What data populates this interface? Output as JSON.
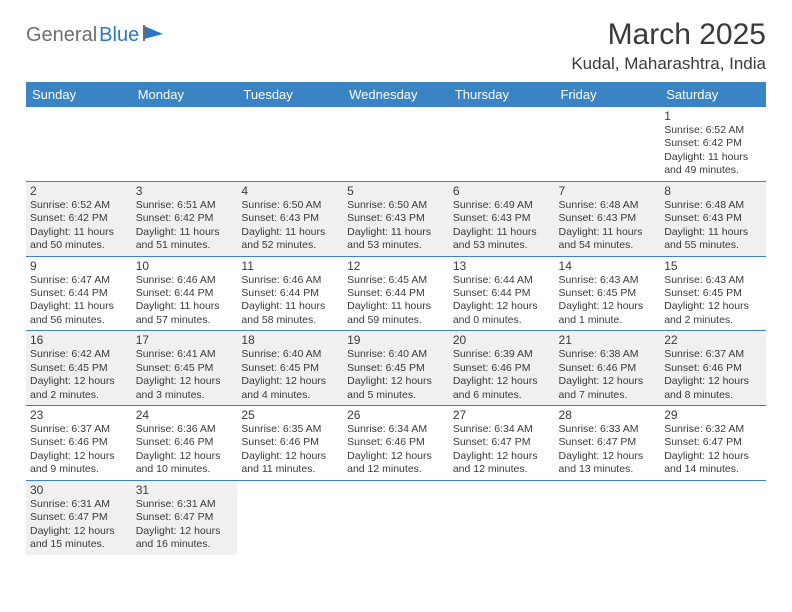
{
  "logo": {
    "textGray": "General",
    "textBlue": "Blue"
  },
  "title": "March 2025",
  "location": "Kudal, Maharashtra, India",
  "colors": {
    "headerBg": "#3b84c4",
    "headerText": "#ffffff",
    "shadeBg": "#f0f0f0",
    "border": "#3b84c4",
    "text": "#3a3a3a",
    "logoGray": "#6d6d6d",
    "logoBlue": "#2b78c2"
  },
  "weekdays": [
    "Sunday",
    "Monday",
    "Tuesday",
    "Wednesday",
    "Thursday",
    "Friday",
    "Saturday"
  ],
  "weeks": [
    [
      null,
      null,
      null,
      null,
      null,
      null,
      {
        "n": "1",
        "sunrise": "6:52 AM",
        "sunset": "6:42 PM",
        "daylight": "11 hours and 49 minutes."
      }
    ],
    [
      {
        "n": "2",
        "sunrise": "6:52 AM",
        "sunset": "6:42 PM",
        "daylight": "11 hours and 50 minutes.",
        "shade": true
      },
      {
        "n": "3",
        "sunrise": "6:51 AM",
        "sunset": "6:42 PM",
        "daylight": "11 hours and 51 minutes.",
        "shade": true
      },
      {
        "n": "4",
        "sunrise": "6:50 AM",
        "sunset": "6:43 PM",
        "daylight": "11 hours and 52 minutes.",
        "shade": true
      },
      {
        "n": "5",
        "sunrise": "6:50 AM",
        "sunset": "6:43 PM",
        "daylight": "11 hours and 53 minutes.",
        "shade": true
      },
      {
        "n": "6",
        "sunrise": "6:49 AM",
        "sunset": "6:43 PM",
        "daylight": "11 hours and 53 minutes.",
        "shade": true
      },
      {
        "n": "7",
        "sunrise": "6:48 AM",
        "sunset": "6:43 PM",
        "daylight": "11 hours and 54 minutes.",
        "shade": true
      },
      {
        "n": "8",
        "sunrise": "6:48 AM",
        "sunset": "6:43 PM",
        "daylight": "11 hours and 55 minutes.",
        "shade": true
      }
    ],
    [
      {
        "n": "9",
        "sunrise": "6:47 AM",
        "sunset": "6:44 PM",
        "daylight": "11 hours and 56 minutes."
      },
      {
        "n": "10",
        "sunrise": "6:46 AM",
        "sunset": "6:44 PM",
        "daylight": "11 hours and 57 minutes."
      },
      {
        "n": "11",
        "sunrise": "6:46 AM",
        "sunset": "6:44 PM",
        "daylight": "11 hours and 58 minutes."
      },
      {
        "n": "12",
        "sunrise": "6:45 AM",
        "sunset": "6:44 PM",
        "daylight": "11 hours and 59 minutes."
      },
      {
        "n": "13",
        "sunrise": "6:44 AM",
        "sunset": "6:44 PM",
        "daylight": "12 hours and 0 minutes."
      },
      {
        "n": "14",
        "sunrise": "6:43 AM",
        "sunset": "6:45 PM",
        "daylight": "12 hours and 1 minute."
      },
      {
        "n": "15",
        "sunrise": "6:43 AM",
        "sunset": "6:45 PM",
        "daylight": "12 hours and 2 minutes."
      }
    ],
    [
      {
        "n": "16",
        "sunrise": "6:42 AM",
        "sunset": "6:45 PM",
        "daylight": "12 hours and 2 minutes.",
        "shade": true
      },
      {
        "n": "17",
        "sunrise": "6:41 AM",
        "sunset": "6:45 PM",
        "daylight": "12 hours and 3 minutes.",
        "shade": true
      },
      {
        "n": "18",
        "sunrise": "6:40 AM",
        "sunset": "6:45 PM",
        "daylight": "12 hours and 4 minutes.",
        "shade": true
      },
      {
        "n": "19",
        "sunrise": "6:40 AM",
        "sunset": "6:45 PM",
        "daylight": "12 hours and 5 minutes.",
        "shade": true
      },
      {
        "n": "20",
        "sunrise": "6:39 AM",
        "sunset": "6:46 PM",
        "daylight": "12 hours and 6 minutes.",
        "shade": true
      },
      {
        "n": "21",
        "sunrise": "6:38 AM",
        "sunset": "6:46 PM",
        "daylight": "12 hours and 7 minutes.",
        "shade": true
      },
      {
        "n": "22",
        "sunrise": "6:37 AM",
        "sunset": "6:46 PM",
        "daylight": "12 hours and 8 minutes.",
        "shade": true
      }
    ],
    [
      {
        "n": "23",
        "sunrise": "6:37 AM",
        "sunset": "6:46 PM",
        "daylight": "12 hours and 9 minutes."
      },
      {
        "n": "24",
        "sunrise": "6:36 AM",
        "sunset": "6:46 PM",
        "daylight": "12 hours and 10 minutes."
      },
      {
        "n": "25",
        "sunrise": "6:35 AM",
        "sunset": "6:46 PM",
        "daylight": "12 hours and 11 minutes."
      },
      {
        "n": "26",
        "sunrise": "6:34 AM",
        "sunset": "6:46 PM",
        "daylight": "12 hours and 12 minutes."
      },
      {
        "n": "27",
        "sunrise": "6:34 AM",
        "sunset": "6:47 PM",
        "daylight": "12 hours and 12 minutes."
      },
      {
        "n": "28",
        "sunrise": "6:33 AM",
        "sunset": "6:47 PM",
        "daylight": "12 hours and 13 minutes."
      },
      {
        "n": "29",
        "sunrise": "6:32 AM",
        "sunset": "6:47 PM",
        "daylight": "12 hours and 14 minutes."
      }
    ],
    [
      {
        "n": "30",
        "sunrise": "6:31 AM",
        "sunset": "6:47 PM",
        "daylight": "12 hours and 15 minutes.",
        "shade": true
      },
      {
        "n": "31",
        "sunrise": "6:31 AM",
        "sunset": "6:47 PM",
        "daylight": "12 hours and 16 minutes.",
        "shade": true
      },
      null,
      null,
      null,
      null,
      null
    ]
  ],
  "labels": {
    "sunrise": "Sunrise:",
    "sunset": "Sunset:",
    "daylight": "Daylight:"
  }
}
